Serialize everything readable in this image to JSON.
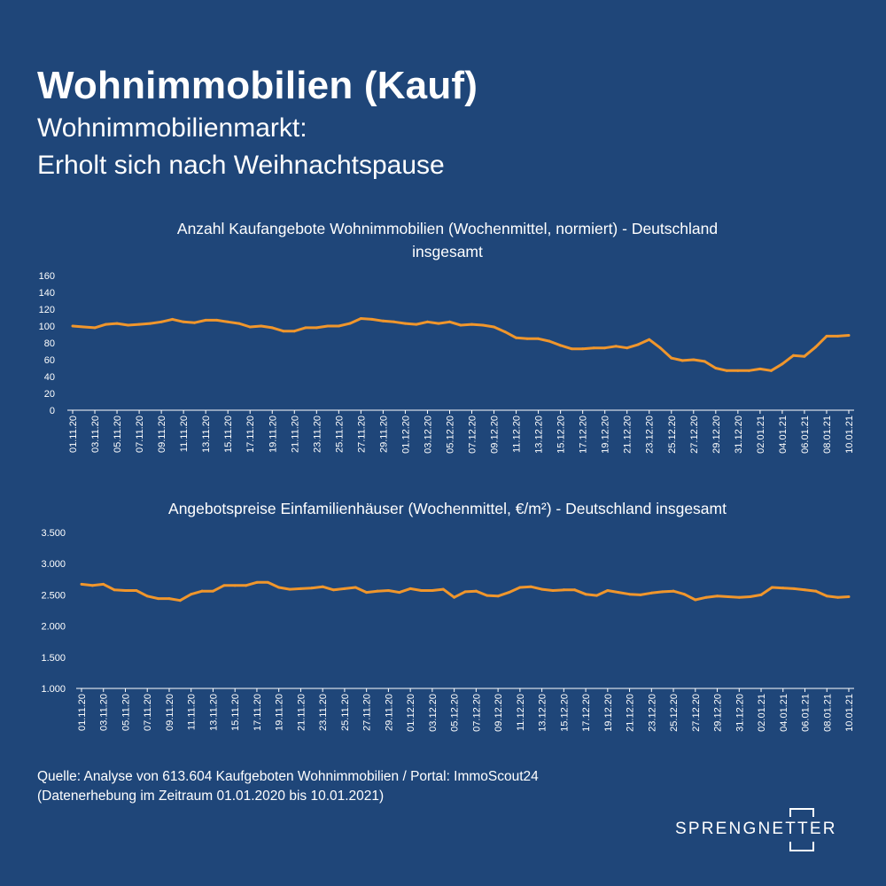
{
  "header": {
    "title": "Wohnimmobilien (Kauf)",
    "subtitle_line1": "Wohnimmobilienmarkt:",
    "subtitle_line2": "Erholt sich nach Weihnachtspause"
  },
  "footer": {
    "source_line1": "Quelle: Analyse von 613.604 Kaufgeboten Wohnimmobilien / Portal: ImmoScout24",
    "source_line2": "(Datenerhebung im Zeitraum 01.01.2020 bis 10.01.2021)"
  },
  "logo": {
    "text": "SPRENGNETTER"
  },
  "colors": {
    "background": "#1f4679",
    "line": "#f0962c",
    "text": "#ffffff",
    "axis": "#ffffff"
  },
  "chart_data": [
    {
      "type": "line",
      "title": "Anzahl Kaufangebote Wohnimmobilien (Wochenmittel, normiert) - Deutschland insgesamt",
      "title_line1": "Anzahl Kaufangebote Wohnimmobilien (Wochenmittel, normiert) - Deutschland",
      "title_line2": "insgesamt",
      "ylim": [
        0,
        160
      ],
      "yticks": [
        0,
        20,
        40,
        60,
        80,
        100,
        120,
        140,
        160
      ],
      "ytick_labels": [
        "0",
        "20",
        "40",
        "60",
        "80",
        "100",
        "120",
        "140",
        "160"
      ],
      "xtick_labels": [
        "01.11.20",
        "03.11.20",
        "05.11.20",
        "07.11.20",
        "09.11.20",
        "11.11.20",
        "13.11.20",
        "15.11.20",
        "17.11.20",
        "19.11.20",
        "21.11.20",
        "23.11.20",
        "25.11.20",
        "27.11.20",
        "29.11.20",
        "01.12.20",
        "03.12.20",
        "05.12.20",
        "07.12.20",
        "09.12.20",
        "11.12.20",
        "13.12.20",
        "15.12.20",
        "17.12.20",
        "19.12.20",
        "21.12.20",
        "23.12.20",
        "25.12.20",
        "27.12.20",
        "29.12.20",
        "31.12.20",
        "02.01.21",
        "04.01.21",
        "06.01.21",
        "08.01.21",
        "10.01.21"
      ],
      "grid": false,
      "series": [
        {
          "values": [
            100,
            99,
            98,
            102,
            103,
            101,
            102,
            103,
            105,
            108,
            105,
            104,
            107,
            107,
            105,
            103,
            99,
            100,
            98,
            94,
            94,
            98,
            98,
            100,
            100,
            103,
            109,
            108,
            106,
            105,
            103,
            102,
            105,
            103,
            105,
            101,
            102,
            101,
            99,
            93,
            86,
            85,
            85,
            82,
            77,
            73,
            73,
            74,
            74,
            76,
            74,
            78,
            84,
            74,
            62,
            59,
            60,
            58,
            50,
            47,
            47,
            47,
            49,
            47,
            55,
            65,
            64,
            75,
            88,
            88,
            89
          ]
        }
      ]
    },
    {
      "type": "line",
      "title": "Angebotspreise Einfamilienhäuser (Wochenmittel, €/m²) - Deutschland insgesamt",
      "ylim": [
        1000,
        3500
      ],
      "yticks": [
        1000,
        1500,
        2000,
        2500,
        3000,
        3500
      ],
      "ytick_labels": [
        "1.000",
        "1.500",
        "2.000",
        "2.500",
        "3.000",
        "3.500"
      ],
      "xtick_labels": [
        "01.11.20",
        "03.11.20",
        "05.11.20",
        "07.11.20",
        "09.11.20",
        "11.11.20",
        "13.11.20",
        "15.11.20",
        "17.11.20",
        "19.11.20",
        "21.11.20",
        "23.11.20",
        "25.11.20",
        "27.11.20",
        "29.11.20",
        "01.12.20",
        "03.12.20",
        "05.12.20",
        "07.12.20",
        "09.12.20",
        "11.12.20",
        "13.12.20",
        "15.12.20",
        "17.12.20",
        "19.12.20",
        "21.12.20",
        "23.12.20",
        "25.12.20",
        "27.12.20",
        "29.12.20",
        "31.12.20",
        "02.01.21",
        "04.01.21",
        "06.01.21",
        "08.01.21",
        "10.01.21"
      ],
      "grid": false,
      "series": [
        {
          "values": [
            2670,
            2650,
            2670,
            2580,
            2570,
            2570,
            2480,
            2440,
            2440,
            2410,
            2510,
            2560,
            2560,
            2650,
            2650,
            2650,
            2700,
            2700,
            2620,
            2590,
            2600,
            2610,
            2630,
            2580,
            2600,
            2620,
            2540,
            2560,
            2570,
            2540,
            2600,
            2570,
            2570,
            2590,
            2460,
            2550,
            2560,
            2490,
            2480,
            2540,
            2620,
            2630,
            2590,
            2570,
            2580,
            2580,
            2510,
            2490,
            2570,
            2540,
            2510,
            2500,
            2530,
            2550,
            2560,
            2510,
            2420,
            2460,
            2480,
            2470,
            2460,
            2470,
            2500,
            2620,
            2610,
            2600,
            2580,
            2560,
            2480,
            2460,
            2470
          ]
        }
      ]
    }
  ]
}
